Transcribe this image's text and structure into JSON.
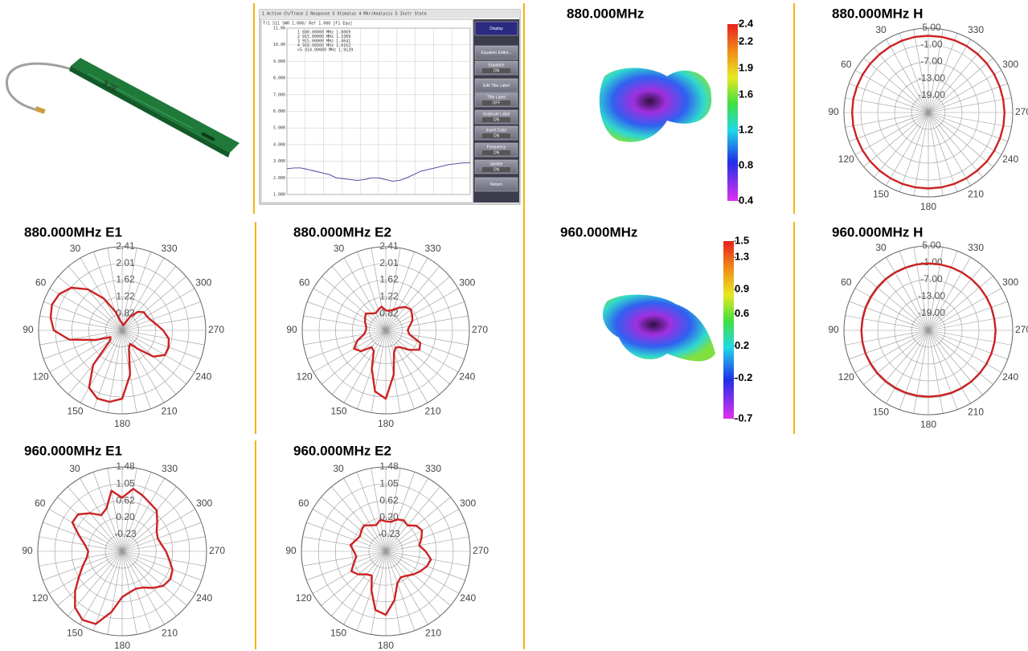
{
  "vna": {
    "menu": "1 Active Ch/Trace   2 Response   3 Stimulus   4 Mkr/Analysis   5 Instr State",
    "header": "Tr1 S11 SWR 1.000/ Ref 1.000 [F1 Equ]",
    "markers": [
      "1  880.00000 MHz  1.8069",
      "2  915.00000 MHz  1.3369",
      "3  915.00000 MHz  1.4641",
      "4  960.00000 MHz  1.8163",
      ">5  814.00000 MHz  1.9139"
    ],
    "softkeys": [
      {
        "label": "Display"
      },
      {
        "label": "Equation Editor..."
      },
      {
        "label": "Equation",
        "state": "ON"
      },
      {
        "label": "Edit Title Label"
      },
      {
        "label": "Title Label",
        "state": "OFF"
      },
      {
        "label": "Graticule Label",
        "state": "ON"
      },
      {
        "label": "Invert Color",
        "state": "ON"
      },
      {
        "label": "Frequency",
        "state": "ON"
      },
      {
        "label": "Update",
        "state": "ON"
      },
      {
        "label": "Return"
      }
    ]
  },
  "chart_data": [
    {
      "type": "line",
      "color": "#3b3b9c",
      "ylim": [
        1,
        11
      ],
      "yticks": [
        {
          "value": 11,
          "label": "11.00"
        },
        {
          "value": 10,
          "label": "10.00"
        },
        {
          "value": 9,
          "label": "9.000"
        },
        {
          "value": 8,
          "label": "8.000"
        },
        {
          "value": 7,
          "label": "7.000"
        },
        {
          "value": 6,
          "label": "6.000"
        },
        {
          "value": 5,
          "label": "5.000"
        },
        {
          "value": 4,
          "label": "4.000"
        },
        {
          "value": 3,
          "label": "3.000"
        },
        {
          "value": 2,
          "label": "2.000"
        },
        {
          "value": 1,
          "label": "1.000"
        }
      ],
      "values": [
        2.55,
        2.6,
        2.6,
        2.5,
        2.4,
        2.3,
        2.2,
        2.0,
        1.95,
        1.9,
        1.85,
        1.9,
        2.0,
        2.0,
        1.9,
        1.8,
        1.85,
        2.0,
        2.2,
        2.4,
        2.5,
        2.6,
        2.7,
        2.8,
        2.85,
        2.9,
        2.9
      ]
    },
    {
      "type": "colorbar",
      "title": "880.000MHz",
      "ylim": [
        0.4,
        2.4
      ],
      "yticks": [
        2.4,
        2.2,
        1.9,
        1.6,
        1.2,
        0.8,
        0.4
      ]
    },
    {
      "type": "polar",
      "title": "880.000MHz  H",
      "color": "#cc2222",
      "rlim": [
        -25,
        5
      ],
      "rticks": [
        {
          "value": 5,
          "label": "5.00"
        },
        {
          "value": -1,
          "label": "-1.00"
        },
        {
          "value": -7,
          "label": "-7.00"
        },
        {
          "value": -13,
          "label": "-13.00"
        },
        {
          "value": -19,
          "label": "-19.00"
        }
      ],
      "theta_ticks": [
        30,
        60,
        90,
        120,
        150,
        180,
        210,
        240,
        270,
        300,
        330
      ],
      "theta": [
        0,
        10,
        20,
        30,
        40,
        50,
        60,
        70,
        80,
        90,
        100,
        110,
        120,
        130,
        140,
        150,
        160,
        170,
        180,
        190,
        200,
        210,
        220,
        230,
        240,
        250,
        260,
        270,
        280,
        290,
        300,
        310,
        320,
        330,
        340,
        350
      ],
      "values": [
        2.3,
        2.3,
        2.2,
        2.1,
        2.0,
        2.0,
        2.0,
        2.0,
        2.1,
        2.1,
        2.1,
        2.0,
        2.0,
        2.0,
        2.0,
        2.0,
        2.0,
        2.0,
        2.0,
        2.0,
        2.0,
        2.0,
        2.0,
        2.1,
        2.1,
        2.1,
        2.1,
        2.1,
        2.0,
        2.0,
        2.1,
        2.1,
        2.2,
        2.3,
        2.3,
        2.3
      ]
    },
    {
      "type": "polar",
      "title": "880.000MHz  E1",
      "color": "#cc2222",
      "rlim": [
        0.43,
        2.41
      ],
      "rticks": [
        2.41,
        2.01,
        1.62,
        1.22,
        0.82
      ],
      "theta_ticks": [
        30,
        60,
        90,
        120,
        150,
        180,
        210,
        240,
        270,
        300,
        330
      ],
      "theta": [
        0,
        10,
        20,
        30,
        40,
        50,
        60,
        70,
        80,
        90,
        100,
        110,
        120,
        130,
        140,
        150,
        160,
        170,
        180,
        190,
        200,
        210,
        220,
        230,
        240,
        250,
        260,
        270,
        280,
        290,
        300,
        310,
        320,
        330,
        340,
        350
      ],
      "values": [
        0.6,
        0.65,
        0.9,
        1.3,
        1.7,
        2.0,
        2.15,
        2.2,
        2.15,
        2.05,
        1.7,
        1.1,
        0.75,
        0.8,
        1.5,
        2.0,
        2.15,
        2.15,
        2.05,
        1.5,
        0.9,
        0.8,
        1.0,
        1.4,
        1.6,
        1.6,
        1.55,
        1.4,
        1.25,
        1.15,
        1.1,
        1.1,
        1.0,
        0.8,
        0.6,
        0.55
      ]
    },
    {
      "type": "polar",
      "title": "880.000MHz  E2",
      "color": "#cc2222",
      "rlim": [
        0.43,
        2.41
      ],
      "rticks": [
        2.41,
        2.01,
        1.62,
        1.22,
        0.82
      ],
      "theta_ticks": [
        30,
        60,
        90,
        120,
        150,
        180,
        210,
        240,
        270,
        300,
        330
      ],
      "theta": [
        0,
        10,
        20,
        30,
        40,
        50,
        60,
        70,
        80,
        90,
        100,
        110,
        120,
        130,
        140,
        150,
        160,
        170,
        180,
        190,
        200,
        210,
        220,
        230,
        240,
        250,
        260,
        270,
        280,
        290,
        300,
        310,
        320,
        330,
        340,
        350
      ],
      "values": [
        0.9,
        1.0,
        0.95,
        0.9,
        0.95,
        1.05,
        1.0,
        0.95,
        0.9,
        0.9,
        0.95,
        1.15,
        1.3,
        1.2,
        0.95,
        1.0,
        1.4,
        1.9,
        2.05,
        1.5,
        1.0,
        0.9,
        0.95,
        1.15,
        1.35,
        1.3,
        1.0,
        0.95,
        1.0,
        1.1,
        1.15,
        1.2,
        1.15,
        1.05,
        0.95,
        0.9
      ]
    },
    {
      "type": "colorbar",
      "title": "960.000MHz",
      "ylim": [
        -0.7,
        1.5
      ],
      "yticks": [
        1.5,
        1.3,
        0.9,
        0.6,
        0.2,
        -0.2,
        -0.7
      ]
    },
    {
      "type": "polar",
      "title": "960.000MHz  H",
      "color": "#cc2222",
      "rlim": [
        -25,
        5
      ],
      "rticks": [
        {
          "value": 5,
          "label": "5.00"
        },
        {
          "value": -1,
          "label": "-1.00"
        },
        {
          "value": -7,
          "label": "-7.00"
        },
        {
          "value": -13,
          "label": "-13.00"
        },
        {
          "value": -19,
          "label": "-19.00"
        }
      ],
      "theta_ticks": [
        30,
        60,
        90,
        120,
        150,
        180,
        210,
        240,
        270,
        300,
        330
      ],
      "theta": [
        0,
        10,
        20,
        30,
        40,
        50,
        60,
        70,
        80,
        90,
        100,
        110,
        120,
        130,
        140,
        150,
        160,
        170,
        180,
        190,
        200,
        210,
        220,
        230,
        240,
        250,
        260,
        270,
        280,
        290,
        300,
        310,
        320,
        330,
        340,
        350
      ],
      "values": [
        -1.2,
        -1.2,
        -1.3,
        -1.3,
        -1.3,
        -1.4,
        -1.4,
        -1.3,
        -1.3,
        -1.2,
        -1.2,
        -1.2,
        -1.3,
        -1.3,
        -1.4,
        -1.4,
        -1.4,
        -1.4,
        -1.4,
        -1.4,
        -1.3,
        -1.3,
        -1.2,
        -1.2,
        -1.1,
        -1.1,
        -1.1,
        -1.1,
        -1.2,
        -1.2,
        -1.2,
        -1.2,
        -1.2,
        -1.2,
        -1.2,
        -1.2
      ]
    },
    {
      "type": "polar",
      "title": "960.000MHz  E1",
      "color": "#cc2222",
      "rlim": [
        -0.66,
        1.48
      ],
      "rticks": [
        1.48,
        1.05,
        0.62,
        {
          "value": 0.2,
          "label": "0.20"
        },
        -0.23
      ],
      "theta_ticks": [
        30,
        60,
        90,
        120,
        150,
        180,
        210,
        240,
        270,
        300,
        330
      ],
      "theta": [
        0,
        10,
        20,
        30,
        40,
        50,
        60,
        70,
        80,
        90,
        100,
        110,
        120,
        130,
        140,
        150,
        160,
        170,
        180,
        190,
        200,
        210,
        220,
        230,
        240,
        250,
        260,
        270,
        280,
        290,
        300,
        310,
        320,
        330,
        340,
        350
      ],
      "values": [
        0.7,
        0.9,
        0.5,
        0.4,
        0.6,
        0.8,
        0.8,
        0.5,
        0.3,
        0.2,
        0.25,
        0.4,
        0.6,
        0.9,
        1.2,
        1.35,
        1.3,
        0.9,
        0.5,
        0.4,
        0.35,
        0.4,
        0.55,
        0.7,
        0.75,
        0.7,
        0.55,
        0.45,
        0.35,
        0.3,
        0.35,
        0.5,
        0.7,
        0.75,
        0.85,
        0.95
      ]
    },
    {
      "type": "polar",
      "title": "960.000MHz  E2",
      "color": "#cc2222",
      "rlim": [
        -0.66,
        1.48
      ],
      "rticks": [
        1.48,
        1.05,
        0.62,
        {
          "value": 0.2,
          "label": "0.20"
        },
        -0.23
      ],
      "theta_ticks": [
        30,
        60,
        90,
        120,
        150,
        180,
        210,
        240,
        270,
        300,
        330
      ],
      "theta": [
        0,
        10,
        20,
        30,
        40,
        50,
        60,
        70,
        80,
        90,
        100,
        110,
        120,
        130,
        140,
        150,
        160,
        170,
        180,
        190,
        200,
        210,
        220,
        230,
        240,
        250,
        260,
        270,
        280,
        290,
        300,
        310,
        320,
        330,
        340,
        350
      ],
      "values": [
        0.1,
        0.15,
        0.05,
        0.1,
        0.2,
        0.15,
        0.1,
        0.15,
        0.25,
        0.15,
        0.1,
        0.2,
        0.35,
        0.25,
        0.1,
        0.05,
        0.4,
        0.85,
        0.95,
        0.6,
        0.2,
        0.1,
        0.15,
        0.25,
        0.35,
        0.45,
        0.5,
        0.35,
        0.2,
        0.3,
        0.4,
        0.35,
        0.2,
        0.25,
        0.2,
        0.1
      ]
    }
  ]
}
